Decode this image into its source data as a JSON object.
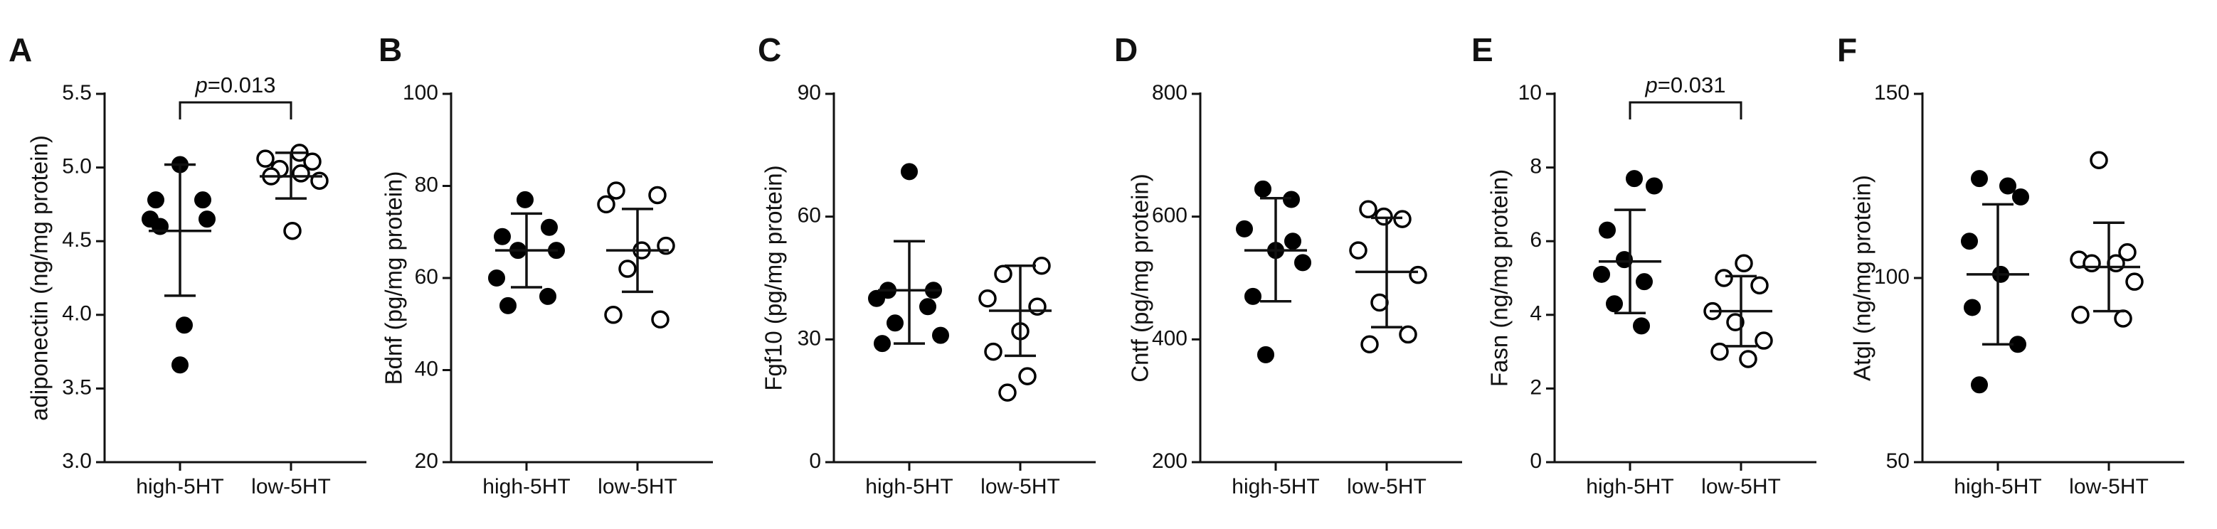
{
  "chart_data": [
    {
      "type": "scatter",
      "panel": "A",
      "ylabel": "adiponectin (ng/mg protein)",
      "ylim": [
        3.0,
        5.5
      ],
      "yticks": [
        "3.0",
        "3.5",
        "4.0",
        "4.5",
        "5.0",
        "5.5"
      ],
      "categories": [
        "high-5HT",
        "low-5HT"
      ],
      "series": [
        {
          "name": "high-5HT",
          "marker": "filled",
          "values": [
            5.02,
            4.78,
            4.78,
            4.65,
            4.65,
            4.6,
            3.93,
            3.66
          ],
          "mean": 4.57,
          "sd_low": 4.13,
          "sd_high": 5.02
        },
        {
          "name": "low-5HT",
          "marker": "open",
          "values": [
            5.1,
            5.06,
            5.04,
            4.99,
            4.96,
            4.94,
            4.91,
            4.57
          ],
          "mean": 4.94,
          "sd_low": 4.79,
          "sd_high": 5.1
        }
      ],
      "significance": {
        "label_italic": "p",
        "label": "=0.013"
      }
    },
    {
      "type": "scatter",
      "panel": "B",
      "ylabel": "Bdnf (pg/mg protein)",
      "ylim": [
        20,
        100
      ],
      "yticks": [
        "20",
        "40",
        "60",
        "80",
        "100"
      ],
      "categories": [
        "high-5HT",
        "low-5HT"
      ],
      "series": [
        {
          "name": "high-5HT",
          "marker": "filled",
          "values": [
            77,
            71,
            69,
            66,
            66,
            60,
            56,
            54
          ],
          "mean": 66,
          "sd_low": 58,
          "sd_high": 74
        },
        {
          "name": "low-5HT",
          "marker": "open",
          "values": [
            79,
            78,
            76,
            67,
            66,
            62,
            52,
            51
          ],
          "mean": 66,
          "sd_low": 57,
          "sd_high": 75
        }
      ]
    },
    {
      "type": "scatter",
      "panel": "C",
      "ylabel": "Fgf10 (pg/mg protein)",
      "ylim": [
        0,
        90
      ],
      "yticks": [
        "0",
        "30",
        "60",
        "90"
      ],
      "categories": [
        "high-5HT",
        "low-5HT"
      ],
      "series": [
        {
          "name": "high-5HT",
          "marker": "filled",
          "values": [
            71,
            42,
            42,
            40,
            38,
            34,
            31,
            29
          ],
          "mean": 42,
          "sd_low": 29,
          "sd_high": 54
        },
        {
          "name": "low-5HT",
          "marker": "open",
          "values": [
            48,
            46,
            40,
            38,
            32,
            27,
            21,
            17
          ],
          "mean": 37,
          "sd_low": 26,
          "sd_high": 48
        }
      ]
    },
    {
      "type": "scatter",
      "panel": "D",
      "ylabel": "Cntf (pg/mg protein)",
      "ylim": [
        200,
        800
      ],
      "yticks": [
        "200",
        "400",
        "600",
        "800"
      ],
      "categories": [
        "high-5HT",
        "low-5HT"
      ],
      "series": [
        {
          "name": "high-5HT",
          "marker": "filled",
          "values": [
            645,
            628,
            580,
            560,
            545,
            525,
            470,
            375
          ],
          "mean": 545,
          "sd_low": 462,
          "sd_high": 630
        },
        {
          "name": "low-5HT",
          "marker": "open",
          "values": [
            612,
            600,
            596,
            545,
            505,
            460,
            408,
            392
          ],
          "mean": 510,
          "sd_low": 420,
          "sd_high": 598
        }
      ]
    },
    {
      "type": "scatter",
      "panel": "E",
      "ylabel": "Fasn (ng/mg protein)",
      "ylim": [
        0,
        10
      ],
      "yticks": [
        "0",
        "2",
        "4",
        "6",
        "8",
        "10"
      ],
      "categories": [
        "high-5HT",
        "low-5HT"
      ],
      "series": [
        {
          "name": "high-5HT",
          "marker": "filled",
          "values": [
            7.7,
            7.5,
            6.3,
            5.5,
            5.1,
            4.9,
            4.3,
            3.7
          ],
          "mean": 5.45,
          "sd_low": 4.05,
          "sd_high": 6.85
        },
        {
          "name": "low-5HT",
          "marker": "open",
          "values": [
            5.4,
            5.0,
            4.8,
            4.1,
            3.8,
            3.3,
            3.0,
            2.8
          ],
          "mean": 4.1,
          "sd_low": 3.15,
          "sd_high": 5.05
        }
      ],
      "significance": {
        "label_italic": "p",
        "label": "=0.031"
      }
    },
    {
      "type": "scatter",
      "panel": "F",
      "ylabel": "Atgl (ng/mg protein)",
      "ylim": [
        50,
        150
      ],
      "yticks": [
        "50",
        "100",
        "150"
      ],
      "categories": [
        "high-5HT",
        "low-5HT"
      ],
      "series": [
        {
          "name": "high-5HT",
          "marker": "filled",
          "values": [
            127,
            125,
            122,
            110,
            101,
            92,
            82,
            71
          ],
          "mean": 101,
          "sd_low": 82,
          "sd_high": 120
        },
        {
          "name": "low-5HT",
          "marker": "open",
          "values": [
            132,
            107,
            105,
            104,
            104,
            99,
            90,
            89
          ],
          "mean": 103,
          "sd_low": 91,
          "sd_high": 115
        }
      ]
    }
  ]
}
